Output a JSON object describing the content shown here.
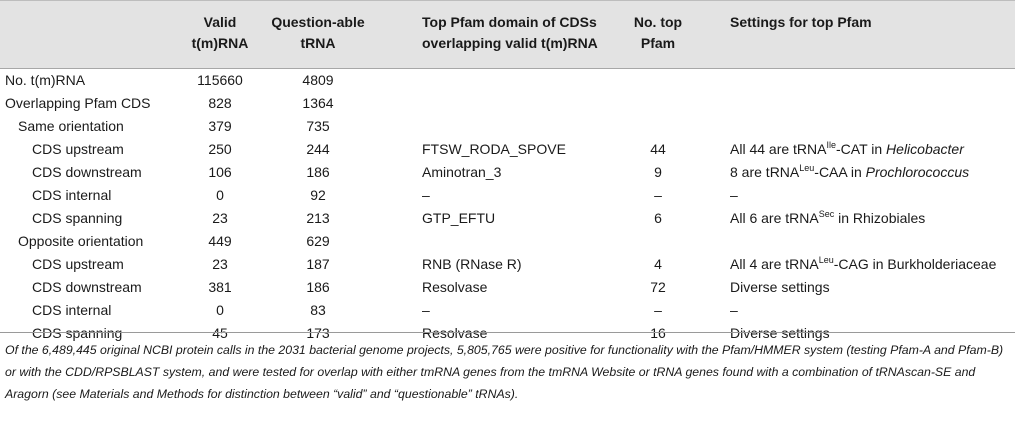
{
  "header": {
    "col_valid": [
      "Valid",
      "t(m)RNA"
    ],
    "col_quest": [
      "Question-able",
      "tRNA"
    ],
    "col_pfam": [
      "Top Pfam domain of CDSs",
      "overlapping valid t(m)RNA"
    ],
    "col_num": [
      "No. top",
      "Pfam"
    ],
    "col_settings": "Settings for top Pfam"
  },
  "rows": [
    {
      "label": "No. t(m)RNA",
      "indent": 0,
      "valid": "115660",
      "quest": "4809",
      "pfam": "",
      "num": "",
      "settings": []
    },
    {
      "label": "Overlapping Pfam CDS",
      "indent": 0,
      "valid": "828",
      "quest": "1364",
      "pfam": "",
      "num": "",
      "settings": []
    },
    {
      "label": "Same orientation",
      "indent": 1,
      "valid": "379",
      "quest": "735",
      "pfam": "",
      "num": "",
      "settings": []
    },
    {
      "label": "CDS upstream",
      "indent": 2,
      "valid": "250",
      "quest": "244",
      "pfam": "FTSW_RODA_SPOVE",
      "num": "44",
      "settings": [
        {
          "t": "All 44 are tRNA"
        },
        {
          "t": "Ile",
          "sup": true
        },
        {
          "t": "-CAT in "
        },
        {
          "t": "Helicobacter",
          "i": true
        }
      ]
    },
    {
      "label": "CDS downstream",
      "indent": 2,
      "valid": "106",
      "quest": "186",
      "pfam": "Aminotran_3",
      "num": "9",
      "settings": [
        {
          "t": "8 are tRNA"
        },
        {
          "t": "Leu",
          "sup": true
        },
        {
          "t": "-CAA in "
        },
        {
          "t": "Prochlorococcus",
          "i": true
        }
      ]
    },
    {
      "label": "CDS internal",
      "indent": 2,
      "valid": "0",
      "quest": "92",
      "pfam": "–",
      "num": "–",
      "settings": [
        {
          "t": "–"
        }
      ]
    },
    {
      "label": "CDS spanning",
      "indent": 2,
      "valid": "23",
      "quest": "213",
      "pfam": "GTP_EFTU",
      "num": "6",
      "settings": [
        {
          "t": "All 6 are tRNA"
        },
        {
          "t": "Sec",
          "sup": true
        },
        {
          "t": " in Rhizobiales"
        }
      ]
    },
    {
      "label": "Opposite orientation",
      "indent": 1,
      "valid": "449",
      "quest": "629",
      "pfam": "",
      "num": "",
      "settings": []
    },
    {
      "label": "CDS upstream",
      "indent": 2,
      "valid": "23",
      "quest": "187",
      "pfam": "RNB (RNase R)",
      "num": "4",
      "settings": [
        {
          "t": "All 4 are tRNA"
        },
        {
          "t": "Leu",
          "sup": true
        },
        {
          "t": "-CAG in Burkholderiaceae"
        }
      ]
    },
    {
      "label": "CDS downstream",
      "indent": 2,
      "valid": "381",
      "quest": "186",
      "pfam": "Resolvase",
      "num": "72",
      "settings": [
        {
          "t": "Diverse settings"
        }
      ]
    },
    {
      "label": "CDS internal",
      "indent": 2,
      "valid": "0",
      "quest": "83",
      "pfam": "–",
      "num": "–",
      "settings": [
        {
          "t": "–"
        }
      ]
    },
    {
      "label": "CDS spanning",
      "indent": 2,
      "valid": "45",
      "quest": "173",
      "pfam": "Resolvase",
      "num": "16",
      "settings": [
        {
          "t": "Diverse settings"
        }
      ]
    }
  ],
  "footnote": "Of the 6,489,445 original NCBI protein calls in the 2031 bacterial genome projects, 5,805,765 were positive for functionality with the Pfam/HMMER system (testing Pfam-A and Pfam-B) or with the CDD/RPSBLAST system, and were tested for overlap with either tmRNA genes from the tmRNA Website or tRNA genes found with a combination of tRNAscan-SE and Aragorn (see Materials and Methods for distinction between “valid” and “questionable” tRNAs)."
}
